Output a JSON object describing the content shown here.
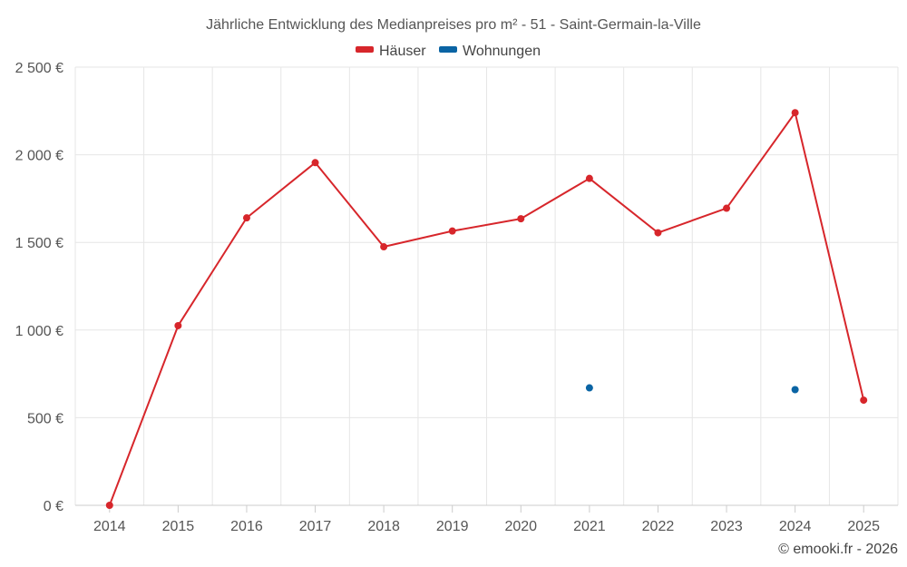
{
  "chart_data": {
    "type": "line",
    "title": "Jährliche Entwicklung des Medianpreises pro m² - 51 - Saint-Germain-la-Ville",
    "categories": [
      "2014",
      "2015",
      "2016",
      "2017",
      "2018",
      "2019",
      "2020",
      "2021",
      "2022",
      "2023",
      "2024",
      "2025"
    ],
    "ylim": [
      0,
      2500
    ],
    "yticks": [
      0,
      500,
      1000,
      1500,
      2000,
      2500
    ],
    "ytick_labels": [
      "0 €",
      "500 €",
      "1 000 €",
      "1 500 €",
      "2 000 €",
      "2 500 €"
    ],
    "grid": true,
    "legend_position": "top-center",
    "series": [
      {
        "name": "Häuser",
        "color": "#d7262b",
        "values": [
          0,
          1025,
          1640,
          1955,
          1475,
          1565,
          1635,
          1865,
          1555,
          1695,
          2240,
          600
        ]
      },
      {
        "name": "Wohnungen",
        "color": "#0a64a4",
        "values": [
          null,
          null,
          null,
          null,
          null,
          null,
          null,
          670,
          null,
          null,
          660,
          null
        ]
      }
    ]
  },
  "credit": "© emooki.fr - 2026"
}
